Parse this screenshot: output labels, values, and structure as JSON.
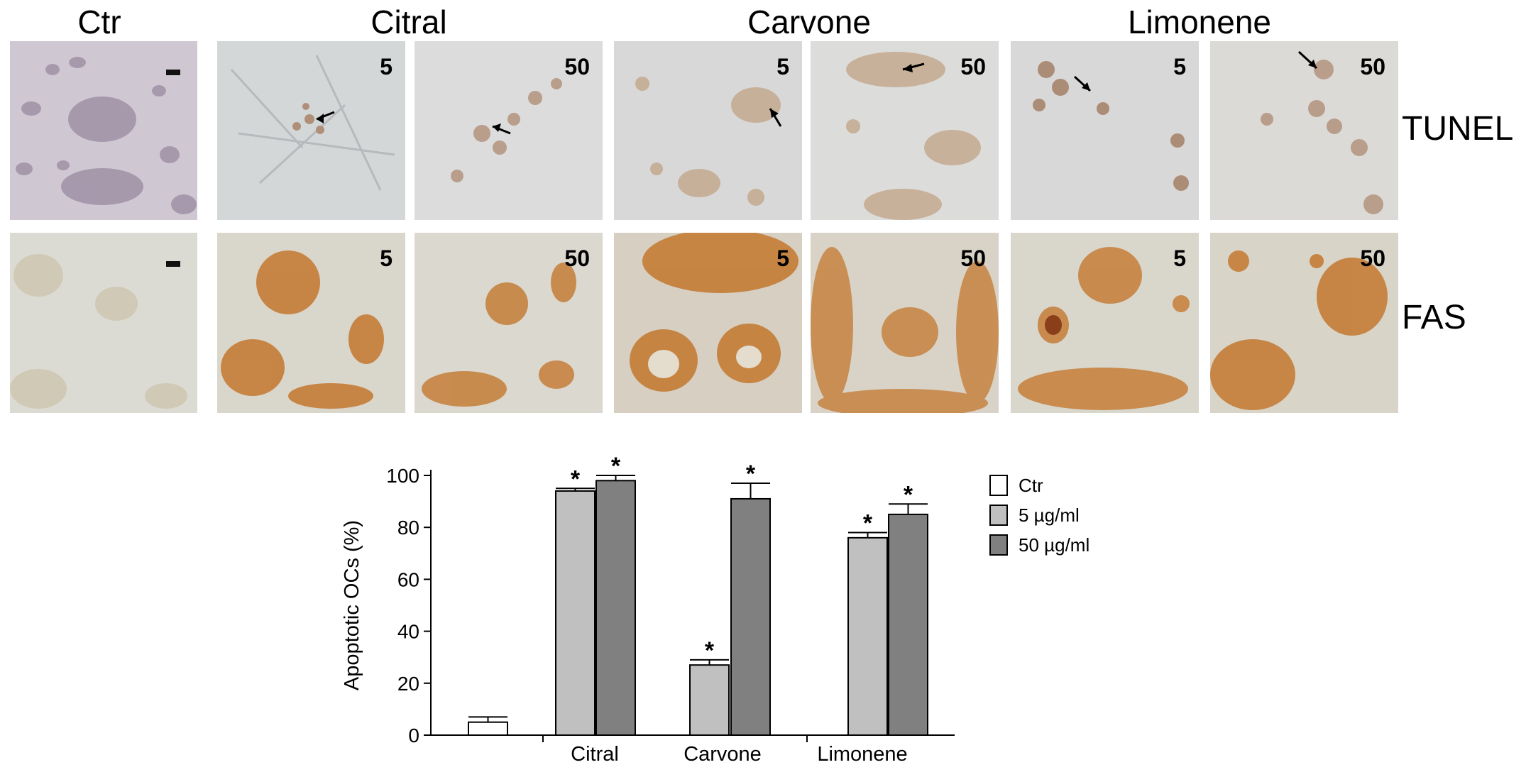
{
  "figure": {
    "column_titles": {
      "ctr": "Ctr",
      "citral": "Citral",
      "carvone": "Carvone",
      "limonene": "Limonene"
    },
    "row_labels": {
      "tunel": "TUNEL",
      "fas": "FAS"
    },
    "panel_labels": {
      "citral_5": "5",
      "citral_50": "50",
      "carvone_5": "5",
      "carvone_50": "50",
      "limonene_5": "5",
      "limonene_50": "50"
    },
    "colors": {
      "tunel_background": "#d9dadc",
      "tunel_cell": "#b08f78",
      "ctr_cell": "#9a8aa0",
      "fas_background": "#dad8cf",
      "fas_stain": "#c4782e"
    }
  },
  "chart_data": {
    "type": "bar",
    "title": "",
    "xlabel": "",
    "ylabel": "Apoptotic OCs (%)",
    "ylim": [
      0,
      100
    ],
    "yticks": [
      "0",
      "20",
      "40",
      "60",
      "80",
      "100"
    ],
    "categories": [
      "",
      "Citral",
      "Carvone",
      "Limonene"
    ],
    "series": [
      {
        "name": "Ctr",
        "color": "#ffffff",
        "values": [
          5,
          null,
          null,
          null
        ],
        "errors": [
          2,
          null,
          null,
          null
        ]
      },
      {
        "name": "5 µg/ml",
        "color": "#c0c0c0",
        "values": [
          null,
          94,
          27,
          76
        ],
        "errors": [
          null,
          1,
          2,
          2
        ]
      },
      {
        "name": "50 µg/ml",
        "color": "#808080",
        "values": [
          null,
          98,
          91,
          85
        ],
        "errors": [
          null,
          2,
          6,
          4
        ]
      }
    ],
    "significance_marker": "*",
    "grid": false,
    "legend_position": "right"
  }
}
